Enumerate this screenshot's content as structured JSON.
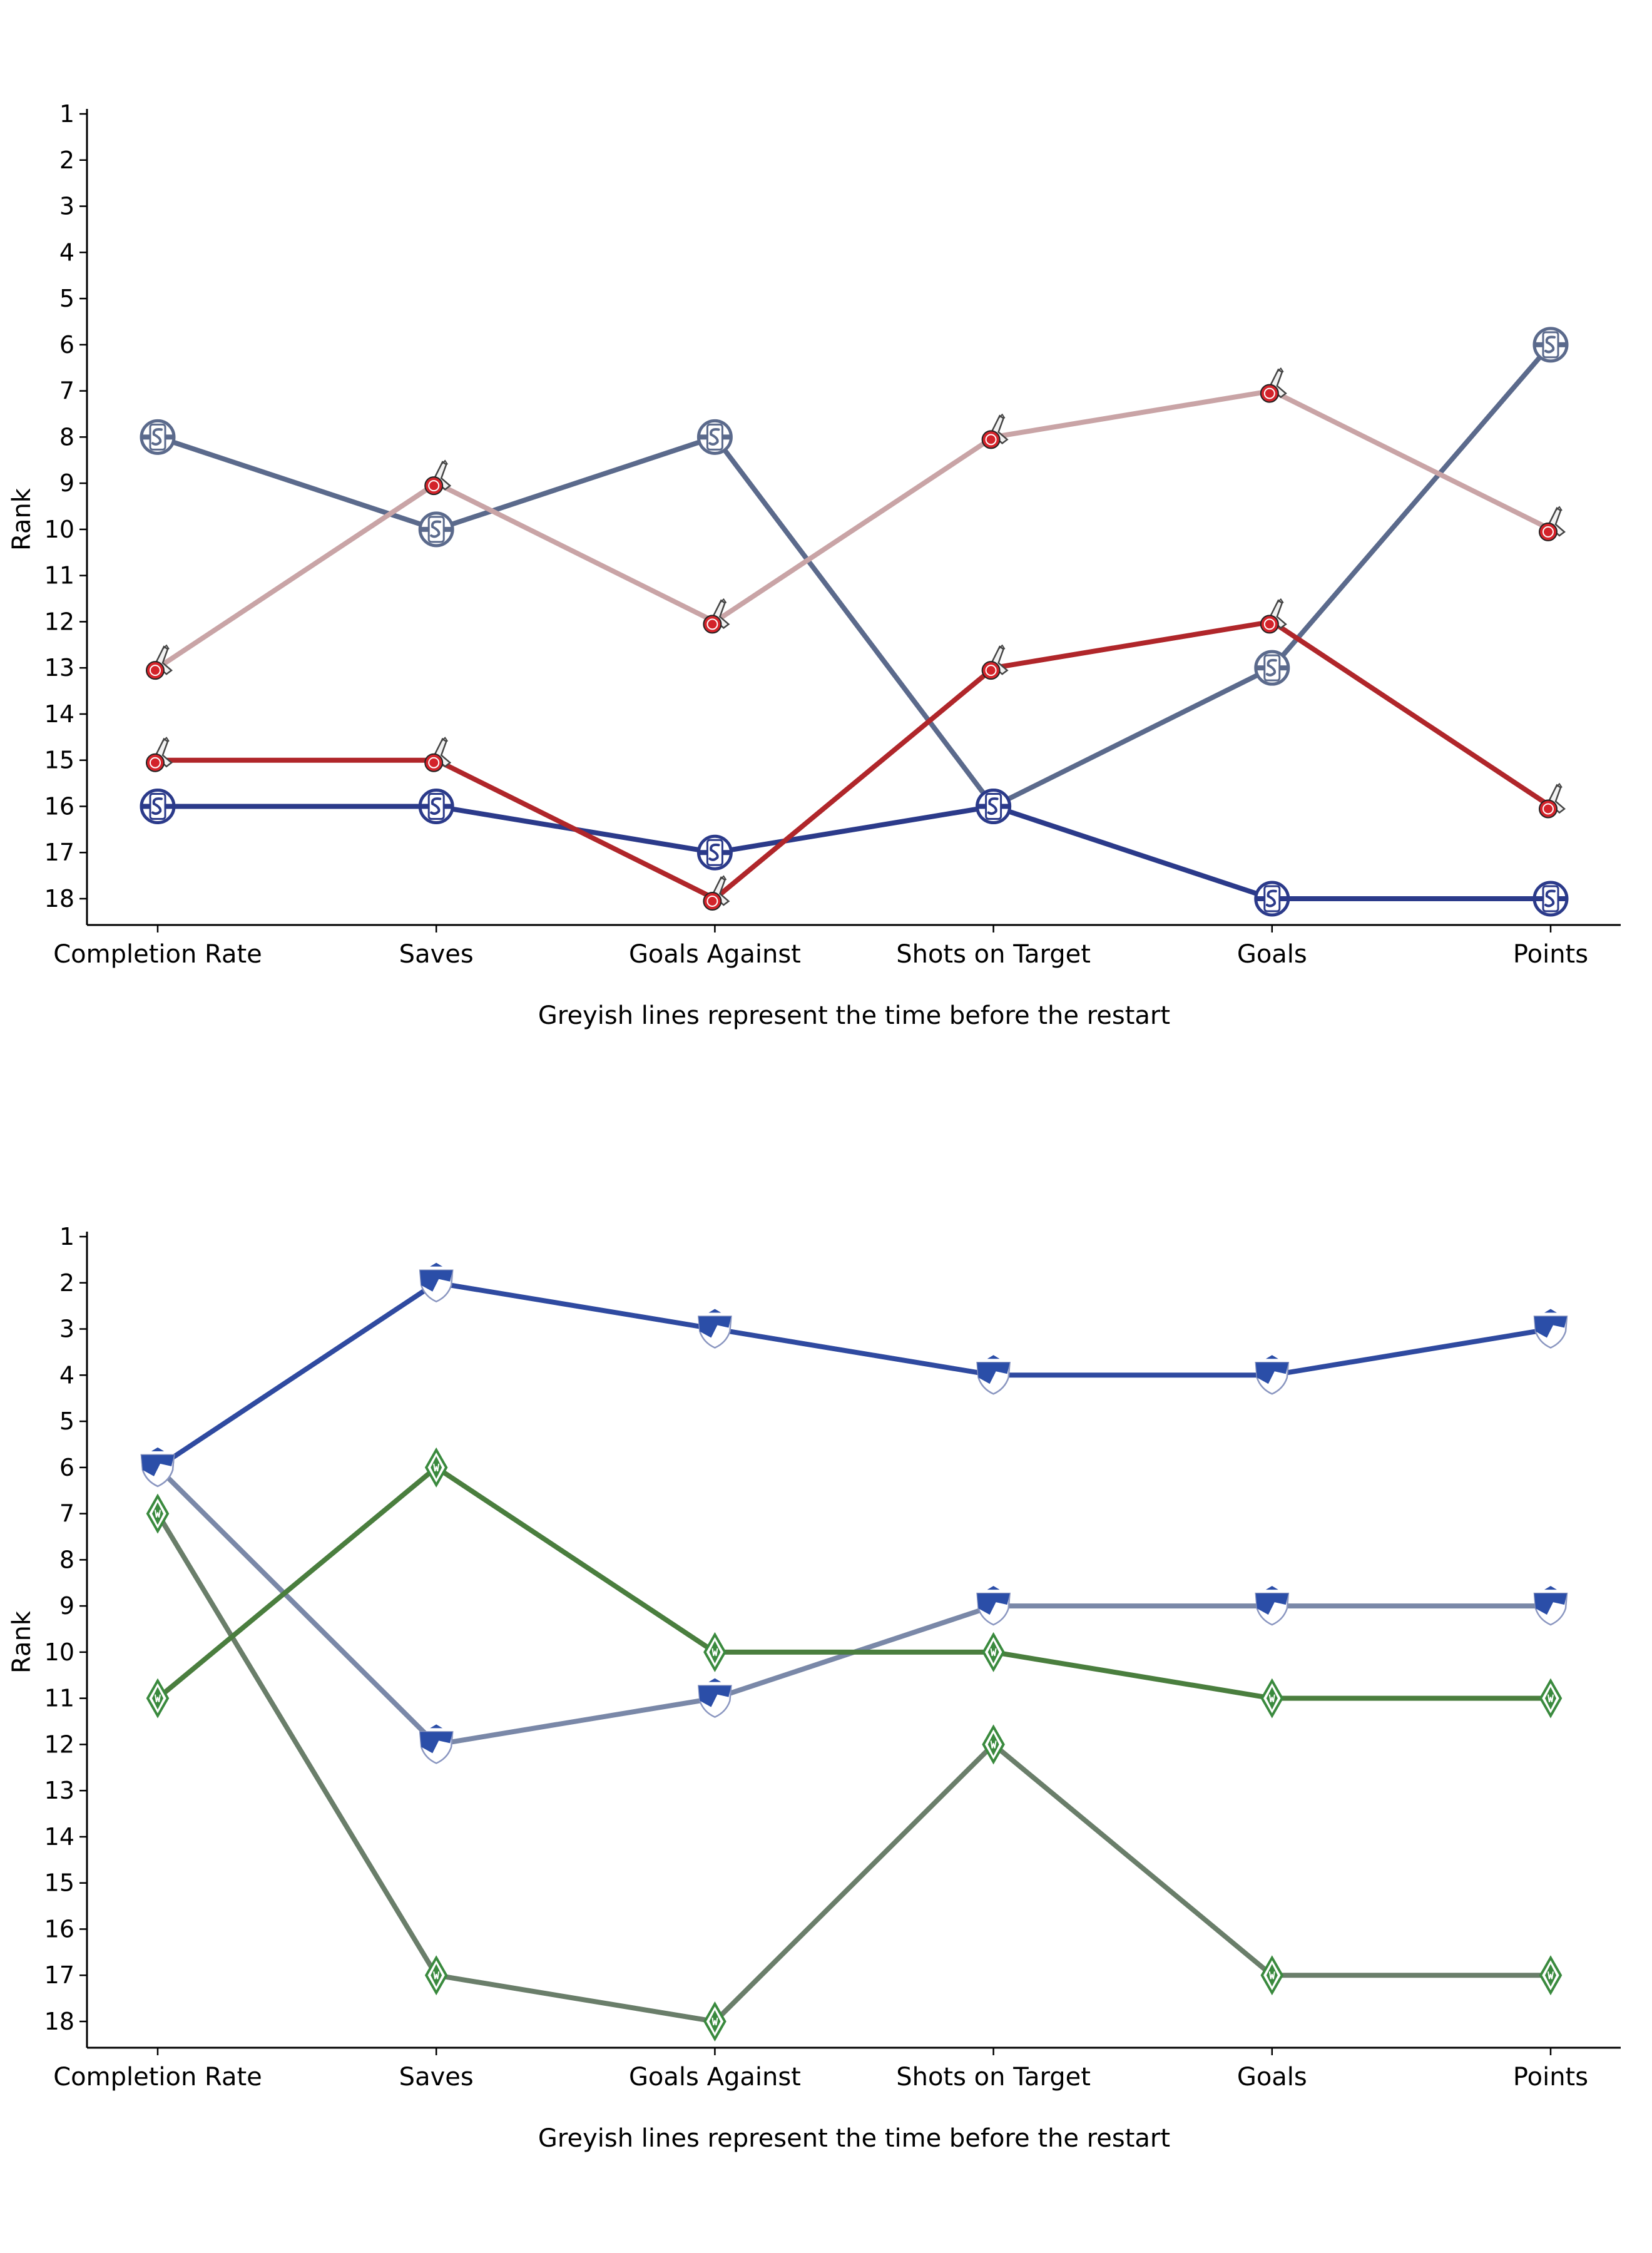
{
  "chart_data": [
    {
      "type": "line",
      "categories": [
        "Completion Rate",
        "Saves",
        "Goals Against",
        "Shots on Target",
        "Goals",
        "Points"
      ],
      "ylabel": "Rank",
      "xlabel": "Greyish lines represent the time before the restart",
      "yticks": [
        "1",
        "2",
        "3",
        "4",
        "5",
        "6",
        "7",
        "8",
        "9",
        "10",
        "11",
        "12",
        "13",
        "14",
        "15",
        "16",
        "17",
        "18"
      ],
      "ylim": [
        1,
        18
      ],
      "y_inverted": true,
      "grid": false,
      "legend": "none",
      "series": [
        {
          "values": [
            8,
            10,
            8,
            16,
            13,
            6
          ],
          "color": "#5b6a8c",
          "marker": "schalke-crest-icon"
        },
        {
          "values": [
            16,
            16,
            17,
            16,
            18,
            18
          ],
          "color": "#2b3a8a",
          "marker": "schalke-crest-icon"
        },
        {
          "values": [
            13,
            9,
            12,
            8,
            7,
            10
          ],
          "color": "#c9a4a6",
          "marker": "koeln-crest-icon"
        },
        {
          "values": [
            15,
            15,
            18,
            13,
            12,
            16
          ],
          "color": "#b0262a",
          "marker": "koeln-crest-icon"
        }
      ]
    },
    {
      "type": "line",
      "categories": [
        "Completion Rate",
        "Saves",
        "Goals Against",
        "Shots on Target",
        "Goals",
        "Points"
      ],
      "ylabel": "Rank",
      "xlabel": "Greyish lines represent the time before the restart",
      "yticks": [
        "1",
        "2",
        "3",
        "4",
        "5",
        "6",
        "7",
        "8",
        "9",
        "10",
        "11",
        "12",
        "13",
        "14",
        "15",
        "16",
        "17",
        "18"
      ],
      "ylim": [
        1,
        18
      ],
      "y_inverted": true,
      "grid": false,
      "legend": "none",
      "series": [
        {
          "values": [
            6,
            12,
            11,
            9,
            9,
            9
          ],
          "color": "#7a88a8",
          "marker": "hoffenheim-crest-icon"
        },
        {
          "values": [
            6,
            2,
            3,
            4,
            4,
            3
          ],
          "color": "#2f4aa0",
          "marker": "hoffenheim-crest-icon"
        },
        {
          "values": [
            7,
            17,
            18,
            12,
            17,
            17
          ],
          "color": "#6a7e6a",
          "marker": "werder-crest-icon"
        },
        {
          "values": [
            11,
            6,
            10,
            10,
            11,
            11
          ],
          "color": "#4a7e3e",
          "marker": "werder-crest-icon"
        }
      ]
    }
  ]
}
